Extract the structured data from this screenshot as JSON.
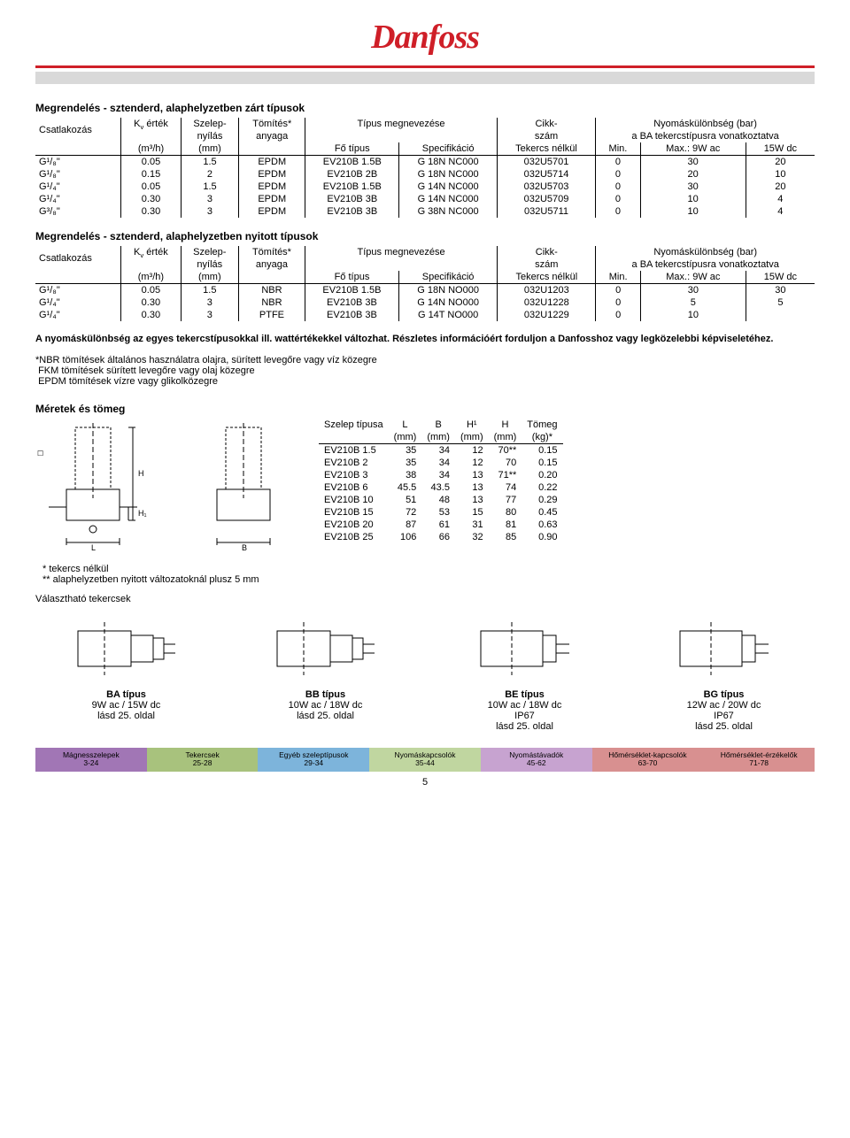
{
  "logo_text": "Danfoss",
  "table1": {
    "title": "Megrendelés - sztenderd, alaphelyzetben zárt típusok",
    "headers": {
      "conn": "Csatlakozás",
      "kv": "Kᵥ érték",
      "kv_unit": "(m³/h)",
      "nyilas": "Szelep-\nnyílás",
      "nyilas_unit": "(mm)",
      "tomites": "Tömítés*\nanyaga",
      "tipus": "Típus megnevezése",
      "fotipus": "Fő típus",
      "spec": "Specifikáció",
      "cikk": "Cikk-\nszám",
      "tekercs_nelkul": "Tekercs nélkül",
      "nyomas": "Nyomáskülönbség (bar)",
      "ba": "a BA tekercstípusra vonatkoztatva",
      "min": "Min.",
      "max": "Max.: 9W ac",
      "w15": "15W dc"
    },
    "rows": [
      [
        "G¹/₈\"",
        "0.05",
        "1.5",
        "EPDM",
        "EV210B 1.5B",
        "G 18N NC000",
        "032U5701",
        "0",
        "30",
        "20"
      ],
      [
        "G¹/₈\"",
        "0.15",
        "2",
        "EPDM",
        "EV210B 2B",
        "G 18N NC000",
        "032U5714",
        "0",
        "20",
        "10"
      ],
      [
        "G¹/₄\"",
        "0.05",
        "1.5",
        "EPDM",
        "EV210B 1.5B",
        "G 14N NC000",
        "032U5703",
        "0",
        "30",
        "20"
      ],
      [
        "G¹/₄\"",
        "0.30",
        "3",
        "EPDM",
        "EV210B 3B",
        "G 14N NC000",
        "032U5709",
        "0",
        "10",
        "4"
      ],
      [
        "G³/₈\"",
        "0.30",
        "3",
        "EPDM",
        "EV210B 3B",
        "G 38N NC000",
        "032U5711",
        "0",
        "10",
        "4"
      ]
    ]
  },
  "table2": {
    "title": "Megrendelés - sztenderd, alaphelyzetben nyitott típusok",
    "rows": [
      [
        "G¹/₈\"",
        "0.05",
        "1.5",
        "NBR",
        "EV210B 1.5B",
        "G 18N NO000",
        "032U1203",
        "0",
        "30",
        "30"
      ],
      [
        "G¹/₄\"",
        "0.30",
        "3",
        "NBR",
        "EV210B 3B",
        "G 14N NO000",
        "032U1228",
        "0",
        "5",
        "5"
      ],
      [
        "G¹/₄\"",
        "0.30",
        "3",
        "PTFE",
        "EV210B 3B",
        "G 14T NO000",
        "032U1229",
        "0",
        "10",
        ""
      ]
    ]
  },
  "notes": {
    "main": "A nyomáskülönbség az egyes tekercstípusokkal ill. wattértékekkel változhat. Részletes információért forduljon a Danfosshoz vagy legközelebbi képviseletéhez.",
    "nbr": "*NBR tömítések általános használatra olajra, sürített levegőre vagy víz közegre",
    "fkm": "FKM tömítések sürített levegőre vagy olaj közegre",
    "epdm": "EPDM tömítések vízre vagy glikolközegre"
  },
  "dims": {
    "title": "Méretek és tömeg",
    "headers": [
      "Szelep típusa",
      "L",
      "B",
      "H¹",
      "H",
      "Tömeg"
    ],
    "units": [
      "",
      "(mm)",
      "(mm)",
      "(mm)",
      "(mm)",
      "(kg)*"
    ],
    "rows": [
      [
        "EV210B 1.5",
        "35",
        "34",
        "12",
        "70**",
        "0.15"
      ],
      [
        "EV210B 2",
        "35",
        "34",
        "12",
        "70",
        "0.15"
      ],
      [
        "EV210B 3",
        "38",
        "34",
        "13",
        "71**",
        "0.20"
      ],
      [
        "EV210B 6",
        "45.5",
        "43.5",
        "13",
        "74",
        "0.22"
      ],
      [
        "EV210B 10",
        "51",
        "48",
        "13",
        "77",
        "0.29"
      ],
      [
        "EV210B 15",
        "72",
        "53",
        "15",
        "80",
        "0.45"
      ],
      [
        "EV210B 20",
        "87",
        "61",
        "31",
        "81",
        "0.63"
      ],
      [
        "EV210B 25",
        "106",
        "66",
        "32",
        "85",
        "0.90"
      ]
    ],
    "star1": "* tekercs nélkül",
    "star2": "** alaphelyzetben nyitott változatoknál plusz 5 mm"
  },
  "coils": {
    "title": "Választható tekercsek",
    "items": [
      {
        "name": "BA típus",
        "spec": "9W ac / 15W dc",
        "ref": "lásd 25. oldal",
        "ip": ""
      },
      {
        "name": "BB típus",
        "spec": "10W ac / 18W dc",
        "ref": "lásd 25. oldal",
        "ip": ""
      },
      {
        "name": "BE típus",
        "spec": "10W ac / 18W dc",
        "ip": "IP67",
        "ref": "lásd 25. oldal"
      },
      {
        "name": "BG típus",
        "spec": "12W ac / 20W dc",
        "ip": "IP67",
        "ref": "lásd 25. oldal"
      }
    ]
  },
  "tabs": [
    {
      "label": "Mágnesszelepek",
      "range": "3-24",
      "color": "#a176b5"
    },
    {
      "label": "Tekercsek",
      "range": "25-28",
      "color": "#a8c27d"
    },
    {
      "label": "Egyéb szeleptípusok",
      "range": "29-34",
      "color": "#7db4db"
    },
    {
      "label": "Nyomáskapcsolók",
      "range": "35-44",
      "color": "#c0d6a0"
    },
    {
      "label": "Nyomástávadók",
      "range": "45-62",
      "color": "#c7a3d0"
    },
    {
      "label": "Hőmérséklet-kapcsolók",
      "range": "63-70",
      "color": "#d89090"
    },
    {
      "label": "Hőmérséklet-érzékelők",
      "range": "71-78",
      "color": "#d89090"
    }
  ],
  "page_number": "5"
}
